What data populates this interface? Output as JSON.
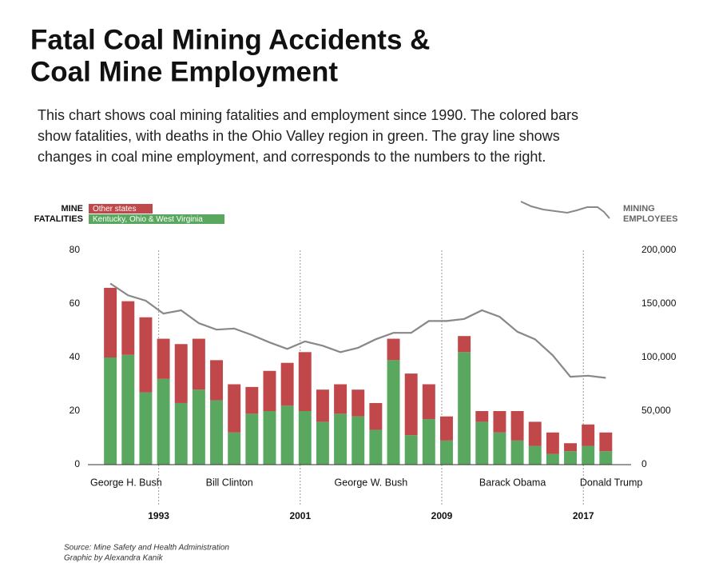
{
  "chart_data": {
    "type": "bar",
    "stacked": true,
    "title_lines": [
      "Fatal Coal Mining Accidents &",
      "Coal Mine Employment"
    ],
    "description_lines": [
      "This chart shows coal mining fatalities and employment since 1990. The colored bars",
      "show fatalities, with deaths in the Ohio Valley region in green. The gray line shows",
      "changes in coal mine employment, and corresponds to the numbers to the right."
    ],
    "legend_title_lines": [
      "MINE",
      "FATALITIES"
    ],
    "line_legend_lines": [
      "MINING",
      "EMPLOYEES"
    ],
    "x": [
      1990,
      1991,
      1992,
      1993,
      1994,
      1995,
      1996,
      1997,
      1998,
      1999,
      2000,
      2001,
      2002,
      2003,
      2004,
      2005,
      2006,
      2007,
      2008,
      2009,
      2010,
      2011,
      2012,
      2013,
      2014,
      2015,
      2016,
      2017,
      2018
    ],
    "series": [
      {
        "name": "Kentucky, Ohio & West Virginia",
        "color": "#5aa860",
        "values": [
          40,
          41,
          27,
          32,
          23,
          28,
          24,
          12,
          19,
          20,
          22,
          20,
          16,
          19,
          18,
          13,
          39,
          11,
          17,
          9,
          42,
          16,
          12,
          9,
          7,
          4,
          5,
          7,
          5
        ]
      },
      {
        "name": "Other states",
        "color": "#c0484a",
        "values": [
          26,
          20,
          28,
          15,
          22,
          19,
          15,
          18,
          10,
          15,
          16,
          22,
          12,
          11,
          10,
          10,
          8,
          23,
          13,
          9,
          6,
          4,
          8,
          11,
          9,
          8,
          3,
          8,
          7
        ]
      },
      {
        "name": "MINING EMPLOYEES",
        "type": "line",
        "axis": "y2",
        "color": "#888888",
        "values": [
          169000,
          158000,
          153000,
          141000,
          144000,
          132000,
          126000,
          127000,
          121000,
          114000,
          108000,
          115000,
          111000,
          105000,
          109000,
          117000,
          123000,
          123000,
          134000,
          134000,
          136000,
          144000,
          138000,
          124000,
          117000,
          102000,
          82000,
          83000,
          81000
        ]
      }
    ],
    "xlim": [
      1989,
      2019.7
    ],
    "xticks": [
      1993,
      2001,
      2009,
      2017
    ],
    "presidents": [
      "George H. Bush",
      "Bill Clinton",
      "George W. Bush",
      "Barack Obama",
      "Donald Trump"
    ],
    "ylim": [
      0,
      80
    ],
    "yticks": [
      0,
      20,
      40,
      60,
      80
    ],
    "y2lim": [
      0,
      200000
    ],
    "y2ticks": [
      {
        "value": 0,
        "label": "0"
      },
      {
        "value": 50000,
        "label": "50,000"
      },
      {
        "value": 100000,
        "label": "100,000"
      },
      {
        "value": 150000,
        "label": "150,000"
      },
      {
        "value": 200000,
        "label": "200,000"
      }
    ],
    "source_lines": [
      "Source: Mine Safety and Health Administration",
      "Graphic by Alexandra Kanik"
    ]
  }
}
